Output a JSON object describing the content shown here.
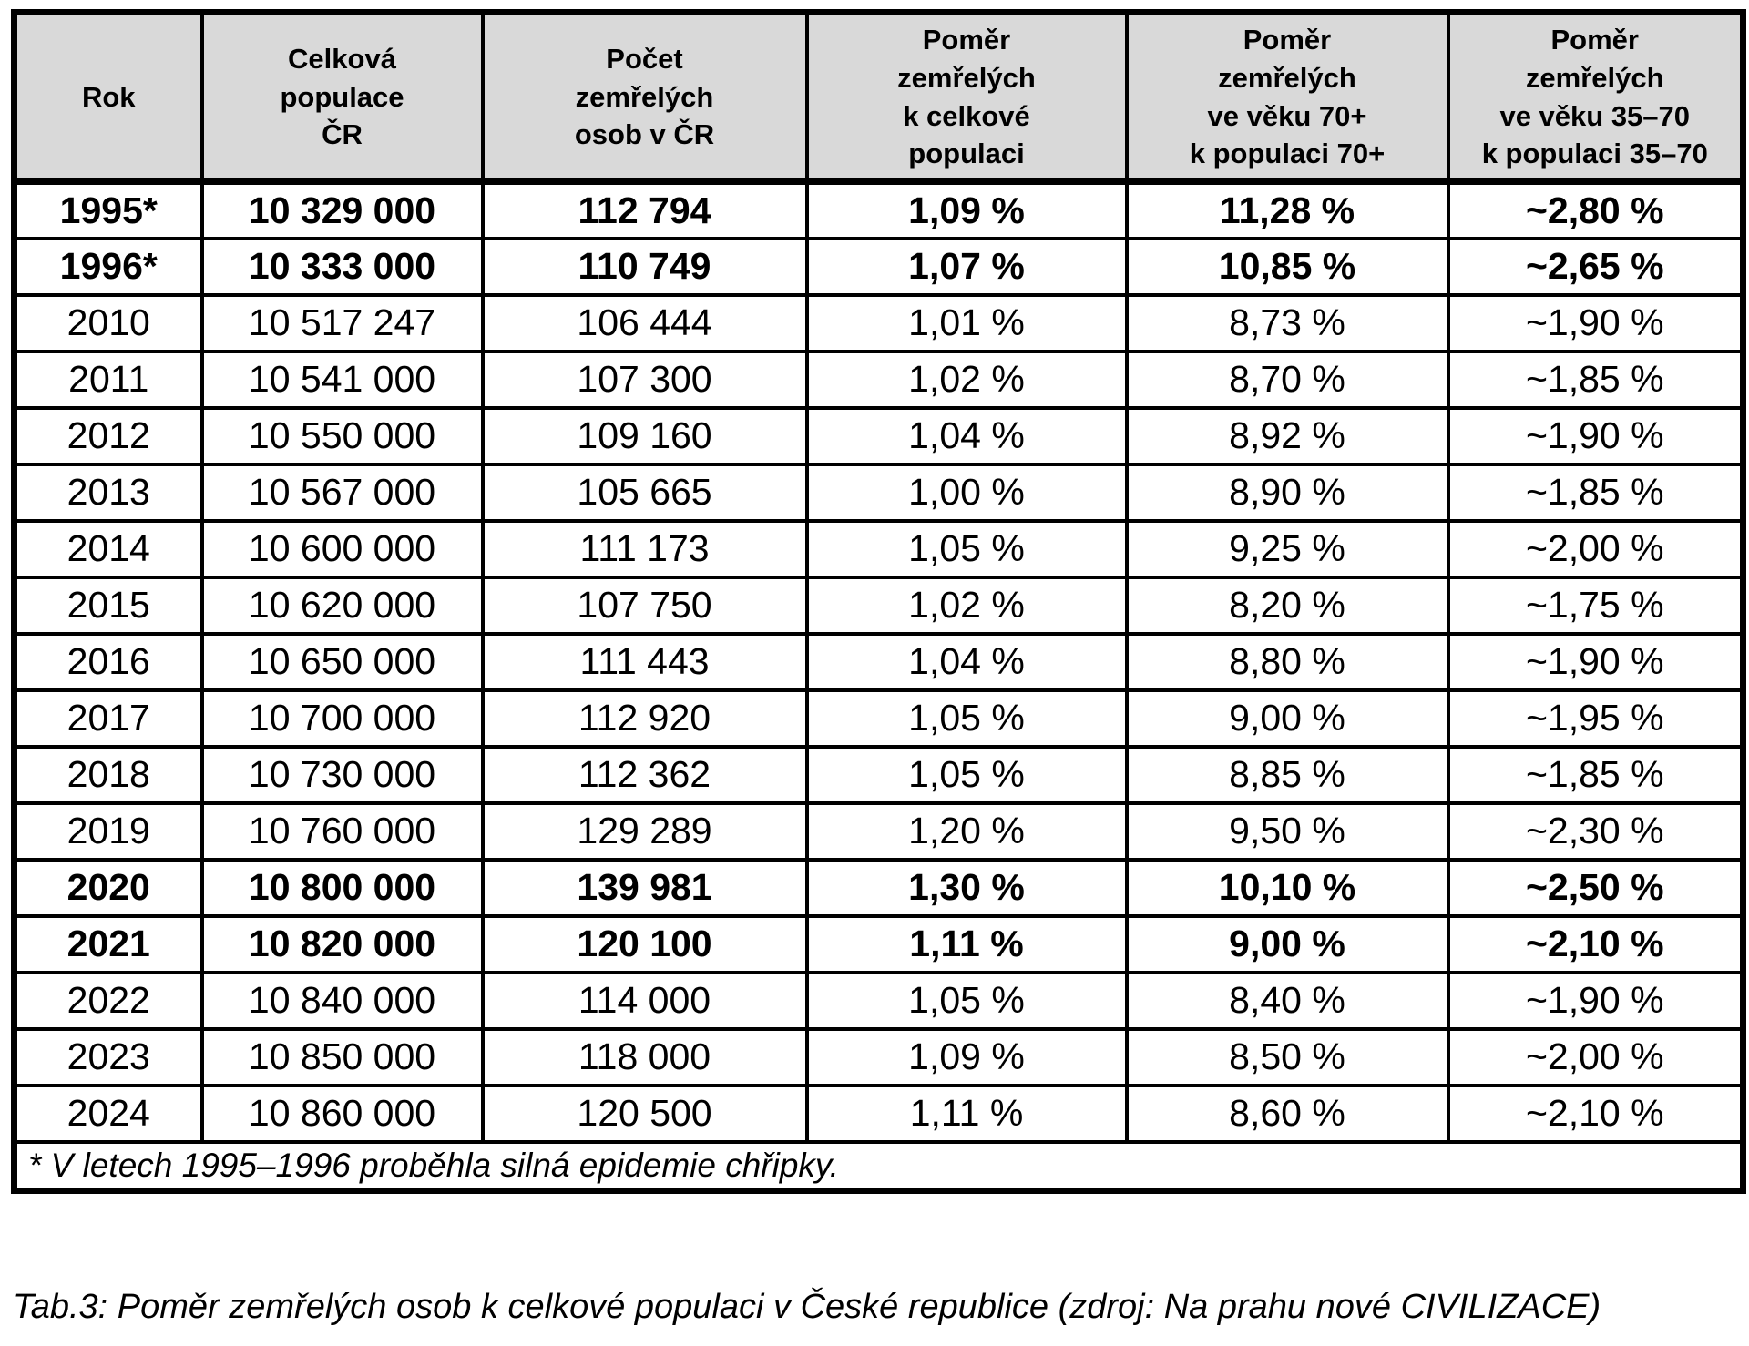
{
  "table": {
    "headers": [
      "Rok",
      "Celková\npopulace\nČR",
      "Počet\nzemřelých\nosob v ČR",
      "Poměr\nzemřelých\nk celkové\npopulaci",
      "Poměr\nzemřelých\nve věku 70+\nk populaci 70+",
      "Poměr\nzemřelých\nve věku 35–70\nk populaci 35–70"
    ],
    "rows": [
      {
        "bold": true,
        "cells": [
          "1995*",
          "10 329 000",
          "112 794",
          "1,09 %",
          "11,28 %",
          "~2,80 %"
        ]
      },
      {
        "bold": true,
        "cells": [
          "1996*",
          "10 333 000",
          "110 749",
          "1,07 %",
          "10,85 %",
          "~2,65 %"
        ]
      },
      {
        "bold": false,
        "cells": [
          "2010",
          "10 517 247",
          "106 444",
          "1,01 %",
          "8,73 %",
          "~1,90 %"
        ]
      },
      {
        "bold": false,
        "cells": [
          "2011",
          "10 541 000",
          "107 300",
          "1,02 %",
          "8,70 %",
          "~1,85 %"
        ]
      },
      {
        "bold": false,
        "cells": [
          "2012",
          "10 550 000",
          "109 160",
          "1,04 %",
          "8,92 %",
          "~1,90 %"
        ]
      },
      {
        "bold": false,
        "cells": [
          "2013",
          "10 567 000",
          "105 665",
          "1,00 %",
          "8,90 %",
          "~1,85 %"
        ]
      },
      {
        "bold": false,
        "cells": [
          "2014",
          "10 600 000",
          "111 173",
          "1,05 %",
          "9,25 %",
          "~2,00 %"
        ]
      },
      {
        "bold": false,
        "cells": [
          "2015",
          "10 620 000",
          "107 750",
          "1,02 %",
          "8,20 %",
          "~1,75 %"
        ]
      },
      {
        "bold": false,
        "cells": [
          "2016",
          "10 650 000",
          "111 443",
          "1,04 %",
          "8,80 %",
          "~1,90 %"
        ]
      },
      {
        "bold": false,
        "cells": [
          "2017",
          "10 700 000",
          "112 920",
          "1,05 %",
          "9,00 %",
          "~1,95 %"
        ]
      },
      {
        "bold": false,
        "cells": [
          "2018",
          "10 730 000",
          "112 362",
          "1,05 %",
          "8,85 %",
          "~1,85 %"
        ]
      },
      {
        "bold": false,
        "cells": [
          "2019",
          "10 760 000",
          "129 289",
          "1,20 %",
          "9,50 %",
          "~2,30 %"
        ]
      },
      {
        "bold": true,
        "cells": [
          "2020",
          "10 800 000",
          "139 981",
          "1,30 %",
          "10,10 %",
          "~2,50 %"
        ]
      },
      {
        "bold": true,
        "cells": [
          "2021",
          "10 820 000",
          "120 100",
          "1,11 %",
          "9,00 %",
          "~2,10 %"
        ]
      },
      {
        "bold": false,
        "cells": [
          "2022",
          "10 840 000",
          "114 000",
          "1,05 %",
          "8,40 %",
          "~1,90 %"
        ]
      },
      {
        "bold": false,
        "cells": [
          "2023",
          "10 850 000",
          "118 000",
          "1,09 %",
          "8,50 %",
          "~2,00 %"
        ]
      },
      {
        "bold": false,
        "cells": [
          "2024",
          "10 860 000",
          "120 500",
          "1,11 %",
          "8,60 %",
          "~2,10 %"
        ]
      }
    ],
    "footnote": "* V letech 1995–1996 proběhla silná epidemie chřipky.",
    "caption": "Tab.3: Poměr zemřelých osob k celkové populaci v České republice (zdroj: Na prahu nové CIVILIZACE)"
  },
  "colors": {
    "header_bg": "#d9d9d9",
    "border": "#000000",
    "text": "#000000",
    "background": "#ffffff"
  }
}
